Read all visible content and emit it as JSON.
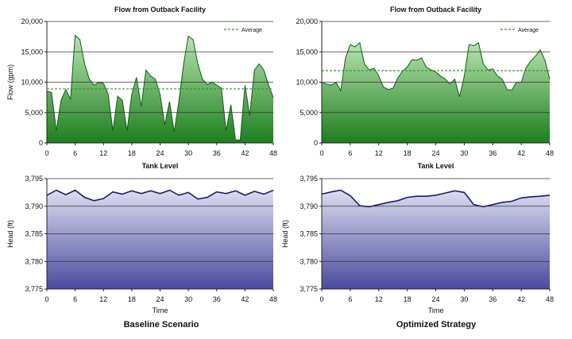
{
  "colors": {
    "flow_dark": "#1d7f1f",
    "flow_light": "#b9e3b0",
    "flow_line": "#0c5f12",
    "avg_line": "#2e9a2e",
    "tank_dark": "#4b4ba0",
    "tank_light": "#dcdcf0",
    "tank_line": "#1c1c6e",
    "gridline": "#333333"
  },
  "scenarios": {
    "left": "Baseline Scenario",
    "right": "Optimized Strategy"
  },
  "chart_data": [
    {
      "id": "flow-baseline",
      "type": "area",
      "title": "Flow from Outback Facility",
      "ylabel": "Flow (gpm)",
      "xlabel": "",
      "xlim": [
        0,
        48
      ],
      "ylim": [
        0,
        20000
      ],
      "xticks": [
        "0",
        "6",
        "12",
        "18",
        "24",
        "30",
        "36",
        "42",
        "48"
      ],
      "yticks": [
        "0",
        "5,000",
        "10,000",
        "15,000",
        "20,000"
      ],
      "gridlines": [
        5000,
        10000,
        15000,
        20000
      ],
      "legend": "Average",
      "legend_position": "top-right",
      "average": 8900,
      "x": [
        0,
        1,
        2,
        3,
        4,
        5,
        6,
        7,
        8,
        9,
        10,
        11,
        12,
        13,
        14,
        15,
        16,
        17,
        18,
        19,
        20,
        21,
        22,
        23,
        24,
        25,
        26,
        27,
        28,
        29,
        30,
        31,
        32,
        33,
        34,
        35,
        36,
        37,
        38,
        39,
        40,
        41,
        42,
        43,
        44,
        45,
        46,
        47,
        48
      ],
      "y": [
        8500,
        8300,
        2000,
        7000,
        8800,
        7200,
        17700,
        17000,
        13000,
        10500,
        9500,
        10000,
        9800,
        8000,
        2000,
        7700,
        7000,
        2000,
        8000,
        10800,
        6000,
        12000,
        11000,
        10500,
        8000,
        3000,
        6800,
        1800,
        7000,
        13000,
        17600,
        17000,
        13000,
        10500,
        9600,
        10000,
        9500,
        9000,
        2000,
        6300,
        500,
        500,
        9500,
        4500,
        12000,
        13000,
        12000,
        9500,
        7500
      ]
    },
    {
      "id": "flow-optimized",
      "type": "area",
      "title": "Flow from Outback Facility",
      "ylabel": "",
      "xlabel": "",
      "xlim": [
        0,
        48
      ],
      "ylim": [
        0,
        20000
      ],
      "xticks": [
        "0",
        "6",
        "12",
        "18",
        "24",
        "30",
        "36",
        "42",
        "48"
      ],
      "yticks": [
        "0",
        "5,000",
        "10,000",
        "15,000",
        "20,000"
      ],
      "gridlines": [
        5000,
        10000,
        15000,
        20000
      ],
      "legend": "Average",
      "legend_position": "top-right",
      "average": 11900,
      "x": [
        0,
        1,
        2,
        3,
        4,
        5,
        6,
        7,
        8,
        9,
        10,
        11,
        12,
        13,
        14,
        15,
        16,
        17,
        18,
        19,
        20,
        21,
        22,
        23,
        24,
        25,
        26,
        27,
        28,
        29,
        30,
        31,
        32,
        33,
        34,
        35,
        36,
        37,
        38,
        39,
        40,
        41,
        42,
        43,
        44,
        45,
        46,
        47,
        48
      ],
      "y": [
        10000,
        9700,
        9500,
        10000,
        8600,
        14000,
        16200,
        15800,
        16500,
        13000,
        12000,
        12300,
        11000,
        9200,
        8800,
        9000,
        10700,
        11800,
        12500,
        13700,
        13600,
        14000,
        12500,
        12000,
        11700,
        11000,
        10500,
        9700,
        10500,
        7600,
        11000,
        16200,
        16000,
        16500,
        13000,
        12000,
        12200,
        11000,
        10500,
        8800,
        8700,
        10000,
        10000,
        12300,
        13500,
        14300,
        15300,
        13600,
        10500
      ]
    },
    {
      "id": "tank-baseline",
      "type": "area",
      "title": "Tank Level",
      "ylabel": "Head (ft)",
      "xlabel": "Time",
      "xlim": [
        0,
        48
      ],
      "ylim": [
        3775,
        3795
      ],
      "xticks": [
        "0",
        "6",
        "12",
        "18",
        "24",
        "30",
        "36",
        "42",
        "48"
      ],
      "yticks": [
        "3,775",
        "3,780",
        "3,785",
        "3,790",
        "3,795"
      ],
      "gridlines": [
        3780,
        3785,
        3790,
        3795
      ],
      "x": [
        0,
        2,
        4,
        6,
        8,
        10,
        12,
        14,
        16,
        18,
        20,
        22,
        24,
        26,
        28,
        30,
        32,
        34,
        36,
        38,
        40,
        42,
        44,
        46,
        48
      ],
      "y": [
        3792.0,
        3792.9,
        3792.1,
        3792.9,
        3791.6,
        3791.0,
        3791.4,
        3792.6,
        3792.2,
        3792.8,
        3792.3,
        3792.8,
        3792.3,
        3792.9,
        3792.0,
        3792.5,
        3791.3,
        3791.6,
        3792.6,
        3792.3,
        3792.8,
        3792.0,
        3792.7,
        3792.2,
        3792.9
      ]
    },
    {
      "id": "tank-optimized",
      "type": "area",
      "title": "Tank Level",
      "ylabel": "Head (ft)",
      "xlabel": "Time",
      "xlim": [
        0,
        48
      ],
      "ylim": [
        3775,
        3795
      ],
      "xticks": [
        "0",
        "6",
        "12",
        "18",
        "24",
        "30",
        "36",
        "42",
        "48"
      ],
      "yticks": [
        "3,775",
        "3,780",
        "3,785",
        "3,790",
        "3,795"
      ],
      "gridlines": [
        3780,
        3785,
        3790,
        3795
      ],
      "x": [
        0,
        2,
        4,
        6,
        8,
        10,
        12,
        14,
        16,
        18,
        20,
        22,
        24,
        26,
        28,
        30,
        32,
        34,
        36,
        38,
        40,
        42,
        44,
        46,
        48
      ],
      "y": [
        3792.2,
        3792.6,
        3792.9,
        3791.9,
        3790.1,
        3789.9,
        3790.3,
        3790.7,
        3791.0,
        3791.6,
        3791.8,
        3791.8,
        3792.0,
        3792.4,
        3792.8,
        3792.5,
        3790.3,
        3789.9,
        3790.3,
        3790.7,
        3790.9,
        3791.5,
        3791.7,
        3791.8,
        3792.0
      ]
    }
  ]
}
